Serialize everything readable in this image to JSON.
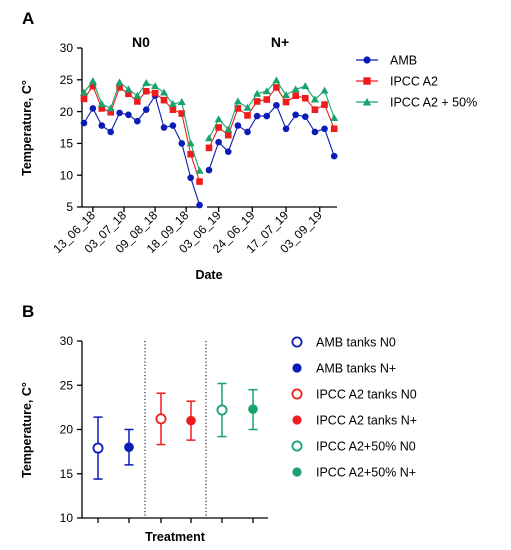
{
  "chart_data": [
    {
      "panel": "A",
      "type": "line",
      "ylabel": "Temperature, C°",
      "xlabel": "Date",
      "ylim": [
        5,
        30
      ],
      "yticks": [
        5,
        10,
        15,
        20,
        25,
        30
      ],
      "legend_position": "right",
      "panels": [
        {
          "title": "N0",
          "xticklabels": [
            "13_06_18",
            "03_07_18",
            "09_08_18",
            "18_09_18"
          ],
          "series": [
            {
              "name": "AMB",
              "marker": "circle",
              "color": "#0a1bb8",
              "values": [
                18.2,
                20.5,
                17.8,
                16.8,
                19.8,
                19.5,
                18.5,
                20.3,
                22.5,
                17.5,
                17.8,
                15,
                9.6,
                5.3
              ]
            },
            {
              "name": "IPCC A2",
              "marker": "square",
              "color": "#ee1c1c",
              "values": [
                22,
                24,
                20.5,
                19.9,
                23.8,
                22.8,
                21.6,
                23.2,
                22.9,
                21.8,
                20.3,
                19.7,
                13.3,
                9
              ]
            },
            {
              "name": "IPCC A2 + 50%",
              "marker": "triangle",
              "color": "#17a36b",
              "values": [
                23,
                24.8,
                21.2,
                20.5,
                24.6,
                23.5,
                22.5,
                24.5,
                24,
                23,
                21.2,
                21.5,
                15,
                10.7
              ]
            }
          ]
        },
        {
          "title": "N+",
          "xticklabels": [
            "03_06_19",
            "24_06_19",
            "17_07_19",
            "03_09_19"
          ],
          "series": [
            {
              "name": "AMB",
              "marker": "circle",
              "color": "#0a1bb8",
              "values": [
                10.8,
                15.2,
                13.7,
                17.8,
                16.8,
                19.3,
                19.3,
                21,
                17.3,
                19.5,
                19.2,
                16.8,
                17.3,
                13
              ]
            },
            {
              "name": "IPCC A2",
              "marker": "square",
              "color": "#ee1c1c",
              "values": [
                14.3,
                17.5,
                16.3,
                20.5,
                19.4,
                21.6,
                21.9,
                23.8,
                21.5,
                22.5,
                22.1,
                20.3,
                21.1,
                17.3
              ]
            },
            {
              "name": "IPCC A2 + 50%",
              "marker": "triangle",
              "color": "#17a36b",
              "values": [
                15.8,
                18.8,
                17.2,
                21.6,
                20.6,
                22.8,
                23.2,
                24.9,
                22.6,
                23.5,
                24,
                21.9,
                23.3,
                19
              ]
            }
          ]
        }
      ]
    },
    {
      "panel": "B",
      "type": "scatter",
      "ylabel": "Temperature, C°",
      "xlabel": "Treatment",
      "ylim": [
        10,
        30
      ],
      "yticks": [
        10,
        15,
        20,
        25,
        30
      ],
      "separators": "dotted vertical lines between treatment groups",
      "series": [
        {
          "name": "AMB tanks N0",
          "marker": "open-circle",
          "color": "#0a1bb8",
          "mean": 17.9,
          "low": 14.4,
          "high": 21.4
        },
        {
          "name": "AMB tanks N+",
          "marker": "filled-circle",
          "color": "#0a1bb8",
          "mean": 18.0,
          "low": 16.0,
          "high": 20.0
        },
        {
          "name": "IPCC A2 tanks N0",
          "marker": "open-circle",
          "color": "#ee1c1c",
          "mean": 21.2,
          "low": 18.3,
          "high": 24.1
        },
        {
          "name": "IPCC A2 tanks N+",
          "marker": "filled-circle",
          "color": "#ee1c1c",
          "mean": 21.0,
          "low": 18.8,
          "high": 23.2
        },
        {
          "name": "IPCC A2+50% N0",
          "marker": "open-circle",
          "color": "#17a36b",
          "mean": 22.2,
          "low": 19.2,
          "high": 25.2
        },
        {
          "name": "IPCC A2+50% N+",
          "marker": "filled-circle",
          "color": "#17a36b",
          "mean": 22.3,
          "low": 20.0,
          "high": 24.5
        }
      ]
    }
  ]
}
